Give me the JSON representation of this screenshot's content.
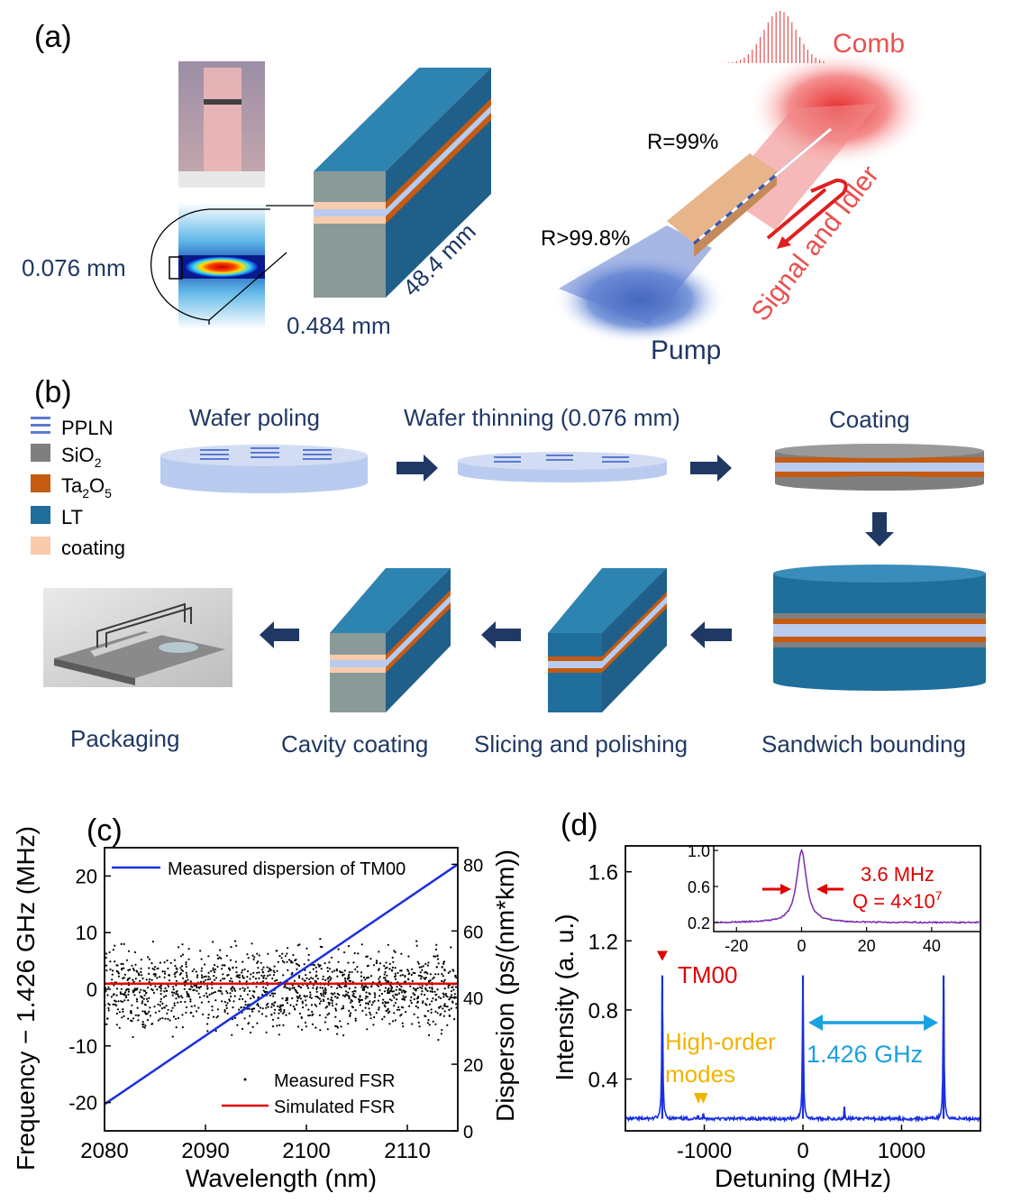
{
  "panel_a": {
    "label": "(a)",
    "dim_thickness": "0.076 mm",
    "dim_width": "0.484 mm",
    "dim_length": "48.4 mm",
    "r_top": "R=99%",
    "r_bottom": "R>99.8%",
    "comb": "Comb",
    "signal_idler": "Signal and Idler",
    "pump": "Pump"
  },
  "panel_b": {
    "label": "(b)",
    "legend": [
      {
        "text": "PPLN",
        "sub": "",
        "tail": ""
      },
      {
        "text": "SiO",
        "sub": "2",
        "tail": ""
      },
      {
        "text": "Ta",
        "sub": "2",
        "tail": "O5"
      },
      {
        "text": "LT",
        "sub": "",
        "tail": ""
      },
      {
        "text": "coating",
        "sub": "",
        "tail": ""
      }
    ],
    "steps": {
      "poling": "Wafer poling",
      "thinning": "Wafer thinning (0.076 mm)",
      "coating": "Coating",
      "sandwich": "Sandwich bounding",
      "slicing": "Slicing and polishing",
      "cavity": "Cavity coating",
      "packaging": "Packaging"
    },
    "colors": {
      "ppln": "#b9cbef",
      "sio2": "#7f7f7f",
      "ta2o5": "#c55a11",
      "lt": "#1f6e9c",
      "coating": "#f8cbad",
      "arrow": "#1f3864"
    }
  },
  "panel_c": {
    "label": "(c)",
    "legend_line": "Measured dispersion of TM00",
    "legend_points": "Measured FSR",
    "legend_sim": "Simulated FSR"
  },
  "panel_d": {
    "label": "(d)",
    "tm00": "TM00",
    "high_order_1": "High-order",
    "high_order_2": "modes",
    "fsr": "1.426 GHz",
    "inset_width": "3.6 MHz",
    "inset_q": "Q = 4×10",
    "inset_q_exp": "7"
  },
  "chart_data": [
    {
      "type": "scatter",
      "xlabel": "Wavelength (nm)",
      "ylabel": "Frequency − 1.426 GHz (MHz)",
      "y2label": "Dispersion (ps/(nm*km))",
      "xlim": [
        2080,
        2115
      ],
      "ylim": [
        -25,
        25
      ],
      "y2lim": [
        0,
        85
      ],
      "xticks": [
        "2080",
        "2090",
        "2100",
        "2110"
      ],
      "yticks": [
        "20",
        "10",
        "0",
        "-10",
        "-20"
      ],
      "y2ticks": [
        "80",
        "60",
        "40",
        "20",
        "0"
      ],
      "series": [
        {
          "name": "Measured dispersion of TM00",
          "axis": "y2",
          "x": [
            2080,
            2115
          ],
          "y": [
            8,
            80
          ]
        },
        {
          "name": "Measured FSR",
          "note": "scattered points around 0 MHz within about ±10 MHz"
        },
        {
          "name": "Simulated FSR",
          "x": [
            2080,
            2115
          ],
          "y": [
            1,
            1
          ]
        }
      ]
    },
    {
      "type": "line",
      "xlabel": "Detuning (MHz)",
      "ylabel": "Intensity (a. u.)",
      "xlim": [
        -1800,
        1800
      ],
      "ylim": [
        0.1,
        1.75
      ],
      "xticks": [
        "-1000",
        "0",
        "1000"
      ],
      "yticks": [
        "1.6",
        "1.2",
        "0.8",
        "0.4"
      ],
      "peaks": [
        {
          "x": -1426,
          "y": 1.0
        },
        {
          "x": -1060,
          "y": 0.19
        },
        {
          "x": -1010,
          "y": 0.2
        },
        {
          "x": 0,
          "y": 1.0
        },
        {
          "x": 420,
          "y": 0.24
        },
        {
          "x": 1426,
          "y": 1.0
        }
      ],
      "baseline": 0.17,
      "inset": {
        "type": "line",
        "xlim": [
          -27,
          55
        ],
        "ylim": [
          0.1,
          1.05
        ],
        "xticks": [
          "-20",
          "0",
          "20",
          "40"
        ],
        "yticks": [
          "1.0",
          "0.6",
          "0.2"
        ],
        "peak_center": 0,
        "fwhm": 3.6
      }
    }
  ]
}
